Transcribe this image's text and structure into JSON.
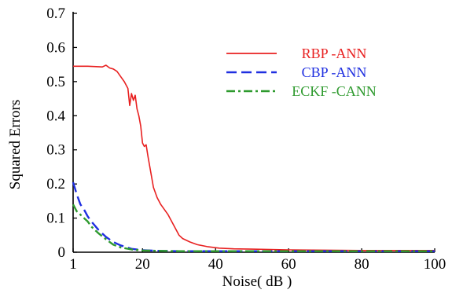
{
  "chart_data": {
    "type": "line",
    "xlabel": "Noise( dB )",
    "ylabel": "Squared  Errors",
    "xlim": [
      1,
      100
    ],
    "ylim": [
      0,
      0.7
    ],
    "x_ticks": [
      "1",
      "20",
      "40",
      "60",
      "80",
      "100"
    ],
    "y_ticks": [
      "0",
      "0.1",
      "0.2",
      "0.3",
      "0.4",
      "0.5",
      "0.6",
      "0.7"
    ],
    "grid": false,
    "legend_position": "top-right",
    "series": [
      {
        "name": "RBP -ANN",
        "color": "#e82020",
        "dash": "solid",
        "x": [
          1,
          5,
          9,
          10,
          11,
          12,
          13,
          14,
          15,
          16,
          16.5,
          17,
          17.5,
          18,
          18.5,
          19,
          19.5,
          20,
          20.5,
          21,
          21.5,
          22,
          23,
          24,
          25,
          27,
          29,
          30,
          31,
          33,
          35,
          38,
          41,
          45,
          50,
          60,
          70,
          80,
          90,
          100
        ],
        "y": [
          0.545,
          0.545,
          0.543,
          0.548,
          0.54,
          0.537,
          0.53,
          0.515,
          0.5,
          0.48,
          0.43,
          0.465,
          0.445,
          0.46,
          0.42,
          0.4,
          0.37,
          0.32,
          0.31,
          0.315,
          0.28,
          0.25,
          0.19,
          0.16,
          0.14,
          0.11,
          0.07,
          0.05,
          0.04,
          0.03,
          0.022,
          0.016,
          0.012,
          0.01,
          0.009,
          0.007,
          0.006,
          0.005,
          0.005,
          0.005
        ]
      },
      {
        "name": "CBP -ANN",
        "color": "#1f2fe0",
        "dash": "dashed",
        "x": [
          1,
          2,
          3,
          4,
          5,
          6,
          8,
          10,
          12,
          14,
          17,
          20,
          25,
          30,
          40,
          50,
          60,
          70,
          80,
          90,
          100
        ],
        "y": [
          0.205,
          0.17,
          0.14,
          0.125,
          0.105,
          0.09,
          0.065,
          0.045,
          0.03,
          0.02,
          0.01,
          0.006,
          0.004,
          0.003,
          0.003,
          0.003,
          0.003,
          0.003,
          0.003,
          0.003,
          0.003
        ]
      },
      {
        "name": "ECKF -CANN",
        "color": "#2e9a2e",
        "dash": "dashdot",
        "x": [
          1,
          2,
          3,
          4,
          5,
          6,
          8,
          10,
          12,
          14,
          17,
          20,
          25,
          30,
          40,
          50,
          60,
          70,
          80,
          90,
          100
        ],
        "y": [
          0.14,
          0.12,
          0.11,
          0.1,
          0.09,
          0.075,
          0.055,
          0.038,
          0.022,
          0.014,
          0.008,
          0.005,
          0.004,
          0.003,
          0.003,
          0.003,
          0.003,
          0.003,
          0.003,
          0.003,
          0.003
        ]
      }
    ]
  }
}
